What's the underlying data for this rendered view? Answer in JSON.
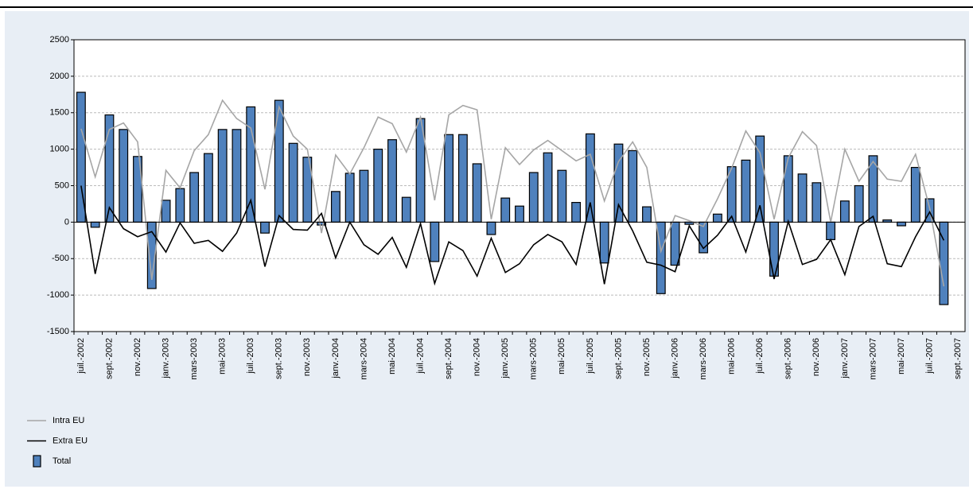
{
  "chart_data": {
    "type": "bar_line",
    "categories": [
      "juil.-2002",
      null,
      "sept.-2002",
      null,
      "nov.-2002",
      null,
      "janv.-2003",
      null,
      "mars-2003",
      null,
      "mai-2003",
      null,
      "juil.-2003",
      null,
      "sept.-2003",
      null,
      "nov.-2003",
      null,
      "janv.-2004",
      null,
      "mars-2004",
      null,
      "mai-2004",
      null,
      "juil.-2004",
      null,
      "sept.-2004",
      null,
      "nov.-2004",
      null,
      "janv.-2005",
      null,
      "mars-2005",
      null,
      "mai-2005",
      null,
      "juil.-2005",
      null,
      "sept.-2005",
      null,
      "nov.-2005",
      null,
      "janv.-2006",
      null,
      "mars-2006",
      null,
      "mai-2006",
      null,
      "juil.-2006",
      null,
      "sept.-2006",
      null,
      "nov.-2006",
      null,
      "janv.-2007",
      null,
      "mars-2007",
      null,
      "mai-2007",
      null,
      "juil.-2007",
      null,
      "sept.-2007"
    ],
    "series": [
      {
        "name": "Intra EU",
        "kind": "line",
        "color": "#a6a6a6",
        "values": [
          1280,
          620,
          1270,
          1360,
          1100,
          -790,
          710,
          470,
          980,
          1200,
          1670,
          1420,
          1290,
          450,
          1580,
          1180,
          1000,
          -150,
          920,
          660,
          1020,
          1440,
          1350,
          960,
          1440,
          300,
          1470,
          1600,
          1540,
          40,
          1020,
          790,
          990,
          1120,
          980,
          840,
          930,
          290,
          830,
          1100,
          750,
          -400,
          90,
          20,
          -60,
          320,
          740,
          1250,
          950,
          40,
          880,
          1240,
          1050,
          0,
          1000,
          560,
          830,
          590,
          560,
          930,
          190,
          -880,
          null
        ]
      },
      {
        "name": "Extra EU",
        "kind": "line",
        "color": "#000000",
        "values": [
          500,
          -710,
          200,
          -90,
          -200,
          -130,
          -410,
          -10,
          -290,
          -250,
          -400,
          -150,
          300,
          -610,
          90,
          -100,
          -110,
          120,
          -490,
          0,
          -310,
          -440,
          -210,
          -620,
          -20,
          -840,
          -270,
          -390,
          -740,
          -220,
          -690,
          -570,
          -310,
          -170,
          -270,
          -580,
          270,
          -850,
          240,
          -120,
          -550,
          -590,
          -680,
          -50,
          -360,
          -180,
          80,
          -410,
          230,
          -780,
          10,
          -580,
          -510,
          -240,
          -720,
          -60,
          80,
          -570,
          -610,
          -200,
          140,
          -250,
          null
        ]
      },
      {
        "name": "Total",
        "kind": "bar",
        "color": "#4f81bd",
        "values": [
          1780,
          -70,
          1470,
          1270,
          900,
          -910,
          300,
          460,
          680,
          940,
          1270,
          1270,
          1580,
          -150,
          1670,
          1080,
          890,
          -40,
          420,
          670,
          710,
          1000,
          1130,
          340,
          1420,
          -540,
          1200,
          1200,
          800,
          -170,
          330,
          220,
          680,
          950,
          710,
          270,
          1210,
          -560,
          1070,
          980,
          210,
          -980,
          -590,
          -30,
          -420,
          110,
          760,
          850,
          1180,
          -740,
          910,
          660,
          540,
          -240,
          290,
          500,
          910,
          30,
          -50,
          750,
          320,
          -1130,
          null
        ]
      }
    ],
    "ylim": [
      -1500,
      2500
    ],
    "yticks": [
      -1500,
      -1000,
      -500,
      0,
      500,
      1000,
      1500,
      2000,
      2500
    ],
    "grid": true
  }
}
